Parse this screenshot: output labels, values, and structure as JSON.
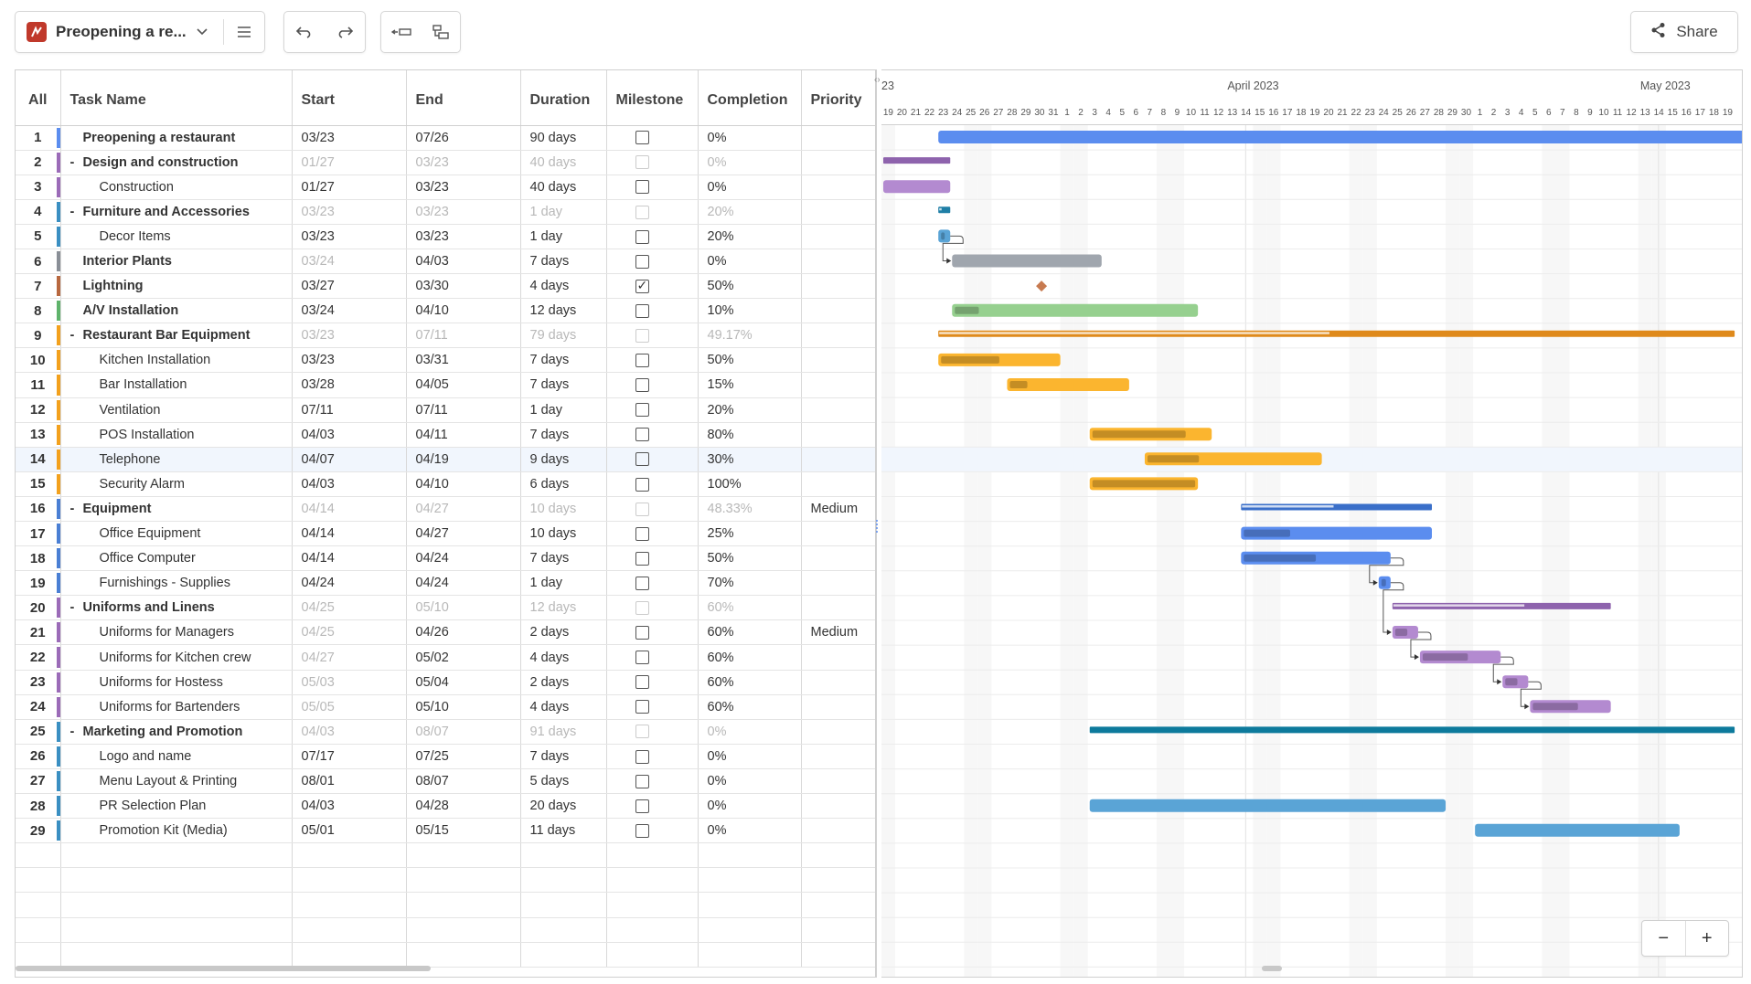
{
  "toolbar": {
    "project_title": "Preopening a re...",
    "share_label": "Share"
  },
  "grid": {
    "columns": [
      "All",
      "Task Name",
      "Start",
      "End",
      "Duration",
      "Milestone",
      "Completion",
      "Priority"
    ],
    "rows": [
      {
        "num": "1",
        "name": "Preopening a restaurant",
        "level": 0,
        "parent": true,
        "toggle": "",
        "start": "03/23",
        "end": "07/26",
        "duration": "90 days",
        "milestone": false,
        "completion": "0%",
        "priority": "",
        "muted": false,
        "color": "#5b8def"
      },
      {
        "num": "2",
        "name": "Design and construction",
        "level": 0,
        "parent": true,
        "toggle": "-",
        "start": "01/27",
        "end": "03/23",
        "duration": "40 days",
        "milestone": false,
        "completion": "0%",
        "priority": "",
        "muted": true,
        "color": "#9b6bb8"
      },
      {
        "num": "3",
        "name": "Construction",
        "level": 1,
        "parent": false,
        "toggle": "",
        "start": "01/27",
        "end": "03/23",
        "duration": "40 days",
        "milestone": false,
        "completion": "0%",
        "priority": "",
        "muted": false,
        "color": "#9b6bb8"
      },
      {
        "num": "4",
        "name": "Furniture and Accessories",
        "level": 0,
        "parent": true,
        "toggle": "-",
        "start": "03/23",
        "end": "03/23",
        "duration": "1 day",
        "milestone": false,
        "completion": "20%",
        "priority": "",
        "muted": true,
        "color": "#3a8fc2"
      },
      {
        "num": "5",
        "name": "Decor Items",
        "level": 1,
        "parent": false,
        "toggle": "",
        "start": "03/23",
        "end": "03/23",
        "duration": "1 day",
        "milestone": false,
        "completion": "20%",
        "priority": "",
        "muted": false,
        "color": "#3a8fc2"
      },
      {
        "num": "6",
        "name": "Interior Plants",
        "level": 0,
        "parent": true,
        "toggle": "",
        "start": "03/24",
        "end": "04/03",
        "duration": "7 days",
        "milestone": false,
        "completion": "0%",
        "priority": "",
        "muted": false,
        "startMuted": true,
        "color": "#8a8f97"
      },
      {
        "num": "7",
        "name": "Lightning",
        "level": 0,
        "parent": true,
        "toggle": "",
        "start": "03/27",
        "end": "03/30",
        "duration": "4 days",
        "milestone": true,
        "completion": "50%",
        "priority": "",
        "muted": false,
        "color": "#b8683f"
      },
      {
        "num": "8",
        "name": "A/V Installation",
        "level": 0,
        "parent": true,
        "toggle": "",
        "start": "03/24",
        "end": "04/10",
        "duration": "12 days",
        "milestone": false,
        "completion": "10%",
        "priority": "",
        "muted": false,
        "color": "#5fb36b"
      },
      {
        "num": "9",
        "name": "Restaurant Bar Equipment",
        "level": 0,
        "parent": true,
        "toggle": "-",
        "start": "03/23",
        "end": "07/11",
        "duration": "79 days",
        "milestone": false,
        "completion": "49.17%",
        "priority": "",
        "muted": true,
        "color": "#f3a11d"
      },
      {
        "num": "10",
        "name": "Kitchen Installation",
        "level": 1,
        "parent": false,
        "toggle": "",
        "start": "03/23",
        "end": "03/31",
        "duration": "7 days",
        "milestone": false,
        "completion": "50%",
        "priority": "",
        "muted": false,
        "color": "#f3a11d"
      },
      {
        "num": "11",
        "name": "Bar Installation",
        "level": 1,
        "parent": false,
        "toggle": "",
        "start": "03/28",
        "end": "04/05",
        "duration": "7 days",
        "milestone": false,
        "completion": "15%",
        "priority": "",
        "muted": false,
        "color": "#f3a11d"
      },
      {
        "num": "12",
        "name": "Ventilation",
        "level": 1,
        "parent": false,
        "toggle": "",
        "start": "07/11",
        "end": "07/11",
        "duration": "1 day",
        "milestone": false,
        "completion": "20%",
        "priority": "",
        "muted": false,
        "color": "#f3a11d"
      },
      {
        "num": "13",
        "name": "POS Installation",
        "level": 1,
        "parent": false,
        "toggle": "",
        "start": "04/03",
        "end": "04/11",
        "duration": "7 days",
        "milestone": false,
        "completion": "80%",
        "priority": "",
        "muted": false,
        "color": "#f3a11d"
      },
      {
        "num": "14",
        "name": "Telephone",
        "level": 1,
        "parent": false,
        "toggle": "",
        "start": "04/07",
        "end": "04/19",
        "duration": "9 days",
        "milestone": false,
        "completion": "30%",
        "priority": "",
        "muted": false,
        "highlight": true,
        "color": "#f3a11d"
      },
      {
        "num": "15",
        "name": "Security Alarm",
        "level": 1,
        "parent": false,
        "toggle": "",
        "start": "04/03",
        "end": "04/10",
        "duration": "6 days",
        "milestone": false,
        "completion": "100%",
        "priority": "",
        "muted": false,
        "color": "#f3a11d"
      },
      {
        "num": "16",
        "name": "Equipment",
        "level": 0,
        "parent": true,
        "toggle": "-",
        "start": "04/14",
        "end": "04/27",
        "duration": "10 days",
        "milestone": false,
        "completion": "48.33%",
        "priority": "Medium",
        "muted": true,
        "color": "#4a7fd4"
      },
      {
        "num": "17",
        "name": "Office Equipment",
        "level": 1,
        "parent": false,
        "toggle": "",
        "start": "04/14",
        "end": "04/27",
        "duration": "10 days",
        "milestone": false,
        "completion": "25%",
        "priority": "",
        "muted": false,
        "color": "#4a7fd4"
      },
      {
        "num": "18",
        "name": "Office Computer",
        "level": 1,
        "parent": false,
        "toggle": "",
        "start": "04/14",
        "end": "04/24",
        "duration": "7 days",
        "milestone": false,
        "completion": "50%",
        "priority": "",
        "muted": false,
        "color": "#4a7fd4"
      },
      {
        "num": "19",
        "name": "Furnishings - Supplies",
        "level": 1,
        "parent": false,
        "toggle": "",
        "start": "04/24",
        "end": "04/24",
        "duration": "1 day",
        "milestone": false,
        "completion": "70%",
        "priority": "",
        "muted": false,
        "color": "#4a7fd4"
      },
      {
        "num": "20",
        "name": "Uniforms and Linens",
        "level": 0,
        "parent": true,
        "toggle": "-",
        "start": "04/25",
        "end": "05/10",
        "duration": "12 days",
        "milestone": false,
        "completion": "60%",
        "priority": "",
        "muted": true,
        "color": "#9b6bb8"
      },
      {
        "num": "21",
        "name": "Uniforms for Managers",
        "level": 1,
        "parent": false,
        "toggle": "",
        "start": "04/25",
        "end": "04/26",
        "duration": "2 days",
        "milestone": false,
        "completion": "60%",
        "priority": "Medium",
        "muted": false,
        "startMuted": true,
        "color": "#9b6bb8"
      },
      {
        "num": "22",
        "name": "Uniforms for Kitchen crew",
        "level": 1,
        "parent": false,
        "toggle": "",
        "start": "04/27",
        "end": "05/02",
        "duration": "4 days",
        "milestone": false,
        "completion": "60%",
        "priority": "",
        "muted": false,
        "startMuted": true,
        "color": "#9b6bb8"
      },
      {
        "num": "23",
        "name": "Uniforms for Hostess",
        "level": 1,
        "parent": false,
        "toggle": "",
        "start": "05/03",
        "end": "05/04",
        "duration": "2 days",
        "milestone": false,
        "completion": "60%",
        "priority": "",
        "muted": false,
        "startMuted": true,
        "color": "#9b6bb8"
      },
      {
        "num": "24",
        "name": "Uniforms for Bartenders",
        "level": 1,
        "parent": false,
        "toggle": "",
        "start": "05/05",
        "end": "05/10",
        "duration": "4 days",
        "milestone": false,
        "completion": "60%",
        "priority": "",
        "muted": false,
        "startMuted": true,
        "color": "#9b6bb8"
      },
      {
        "num": "25",
        "name": "Marketing and Promotion",
        "level": 0,
        "parent": true,
        "toggle": "-",
        "start": "04/03",
        "end": "08/07",
        "duration": "91 days",
        "milestone": false,
        "completion": "0%",
        "priority": "",
        "muted": true,
        "color": "#3a8fc2"
      },
      {
        "num": "26",
        "name": "Logo and name",
        "level": 1,
        "parent": false,
        "toggle": "",
        "start": "07/17",
        "end": "07/25",
        "duration": "7 days",
        "milestone": false,
        "completion": "0%",
        "priority": "",
        "muted": false,
        "color": "#3a8fc2"
      },
      {
        "num": "27",
        "name": "Menu Layout & Printing",
        "level": 1,
        "parent": false,
        "toggle": "",
        "start": "08/01",
        "end": "08/07",
        "duration": "5 days",
        "milestone": false,
        "completion": "0%",
        "priority": "",
        "muted": false,
        "color": "#3a8fc2"
      },
      {
        "num": "28",
        "name": "PR Selection Plan",
        "level": 1,
        "parent": false,
        "toggle": "",
        "start": "04/03",
        "end": "04/28",
        "duration": "20 days",
        "milestone": false,
        "completion": "0%",
        "priority": "",
        "muted": false,
        "color": "#3a8fc2"
      },
      {
        "num": "29",
        "name": "Promotion Kit (Media)",
        "level": 1,
        "parent": false,
        "toggle": "",
        "start": "05/01",
        "end": "05/15",
        "duration": "11 days",
        "milestone": false,
        "completion": "0%",
        "priority": "",
        "muted": false,
        "color": "#3a8fc2"
      }
    ]
  },
  "timeline": {
    "months": [
      {
        "label": "April 2023",
        "day_index": 27
      },
      {
        "label": "May 2023",
        "day_index": 57
      }
    ],
    "edge_label": "23",
    "days": [
      "19",
      "20",
      "21",
      "22",
      "23",
      "24",
      "25",
      "26",
      "27",
      "28",
      "29",
      "30",
      "31",
      "1",
      "2",
      "3",
      "4",
      "5",
      "6",
      "7",
      "8",
      "9",
      "10",
      "11",
      "12",
      "13",
      "14",
      "15",
      "16",
      "17",
      "18",
      "19",
      "20",
      "21",
      "22",
      "23",
      "24",
      "25",
      "26",
      "27",
      "28",
      "29",
      "30",
      "1",
      "2",
      "3",
      "4",
      "5",
      "6",
      "7",
      "8",
      "9",
      "10",
      "11",
      "12",
      "13",
      "14",
      "15",
      "16",
      "17",
      "18",
      "19"
    ],
    "bars": [
      {
        "row": 0,
        "start": 4,
        "dur": 60,
        "kind": "task",
        "color": "#5b8def",
        "progress": 0
      },
      {
        "row": 1,
        "start": 0,
        "dur": 5,
        "kind": "summary",
        "color": "#8e63ad",
        "progress": 0
      },
      {
        "row": 2,
        "start": 0,
        "dur": 5,
        "kind": "task",
        "color": "#b38ad0",
        "progress": 0
      },
      {
        "row": 3,
        "start": 4,
        "dur": 1,
        "kind": "summary",
        "color": "#1f7fa6",
        "progress": 20
      },
      {
        "row": 4,
        "start": 4,
        "dur": 1,
        "kind": "task",
        "color": "#5aa4d6",
        "progress": 20
      },
      {
        "row": 5,
        "start": 5,
        "dur": 11,
        "kind": "task",
        "color": "#a0a6ae",
        "progress": 0
      },
      {
        "row": 6,
        "start": 11.5,
        "dur": 0,
        "kind": "milestone",
        "color": "#c77a50",
        "progress": 0
      },
      {
        "row": 7,
        "start": 5,
        "dur": 18,
        "kind": "task",
        "color": "#96d08f",
        "progress": 10
      },
      {
        "row": 8,
        "start": 4,
        "dur": 58,
        "kind": "summary",
        "color": "#df8a1c",
        "progress": 49
      },
      {
        "row": 9,
        "start": 4,
        "dur": 9,
        "kind": "task",
        "color": "#fbb52f",
        "progress": 50
      },
      {
        "row": 10,
        "start": 9,
        "dur": 9,
        "kind": "task",
        "color": "#fbb52f",
        "progress": 15
      },
      {
        "row": 12,
        "start": 15,
        "dur": 9,
        "kind": "task",
        "color": "#fbb52f",
        "progress": 80
      },
      {
        "row": 13,
        "start": 19,
        "dur": 13,
        "kind": "task",
        "color": "#fbb52f",
        "progress": 30
      },
      {
        "row": 14,
        "start": 15,
        "dur": 8,
        "kind": "task",
        "color": "#fbb52f",
        "progress": 100
      },
      {
        "row": 15,
        "start": 26,
        "dur": 14,
        "kind": "summary",
        "color": "#3a6fc9",
        "progress": 48
      },
      {
        "row": 16,
        "start": 26,
        "dur": 14,
        "kind": "task",
        "color": "#5b8def",
        "progress": 25
      },
      {
        "row": 17,
        "start": 26,
        "dur": 11,
        "kind": "task",
        "color": "#5b8def",
        "progress": 50
      },
      {
        "row": 18,
        "start": 36,
        "dur": 1,
        "kind": "task",
        "color": "#5b8def",
        "progress": 70
      },
      {
        "row": 19,
        "start": 37,
        "dur": 16,
        "kind": "summary",
        "color": "#8e63ad",
        "progress": 60
      },
      {
        "row": 20,
        "start": 37,
        "dur": 2,
        "kind": "task",
        "color": "#b38ad0",
        "progress": 60
      },
      {
        "row": 21,
        "start": 39,
        "dur": 6,
        "kind": "task",
        "color": "#b38ad0",
        "progress": 60
      },
      {
        "row": 22,
        "start": 45,
        "dur": 2,
        "kind": "task",
        "color": "#b38ad0",
        "progress": 60
      },
      {
        "row": 23,
        "start": 47,
        "dur": 6,
        "kind": "task",
        "color": "#b38ad0",
        "progress": 60
      },
      {
        "row": 24,
        "start": 15,
        "dur": 47,
        "kind": "summary",
        "color": "#0d7a9c",
        "progress": 0
      },
      {
        "row": 27,
        "start": 15,
        "dur": 26,
        "kind": "task",
        "color": "#5aa4d6",
        "progress": 0
      },
      {
        "row": 28,
        "start": 43,
        "dur": 15,
        "kind": "task",
        "color": "#5aa4d6",
        "progress": 0
      }
    ],
    "links": [
      [
        4,
        5
      ],
      [
        17,
        18
      ],
      [
        18,
        20
      ],
      [
        20,
        21
      ],
      [
        21,
        22
      ],
      [
        22,
        23
      ]
    ]
  },
  "zoom": {
    "minus": "−",
    "plus": "+"
  }
}
